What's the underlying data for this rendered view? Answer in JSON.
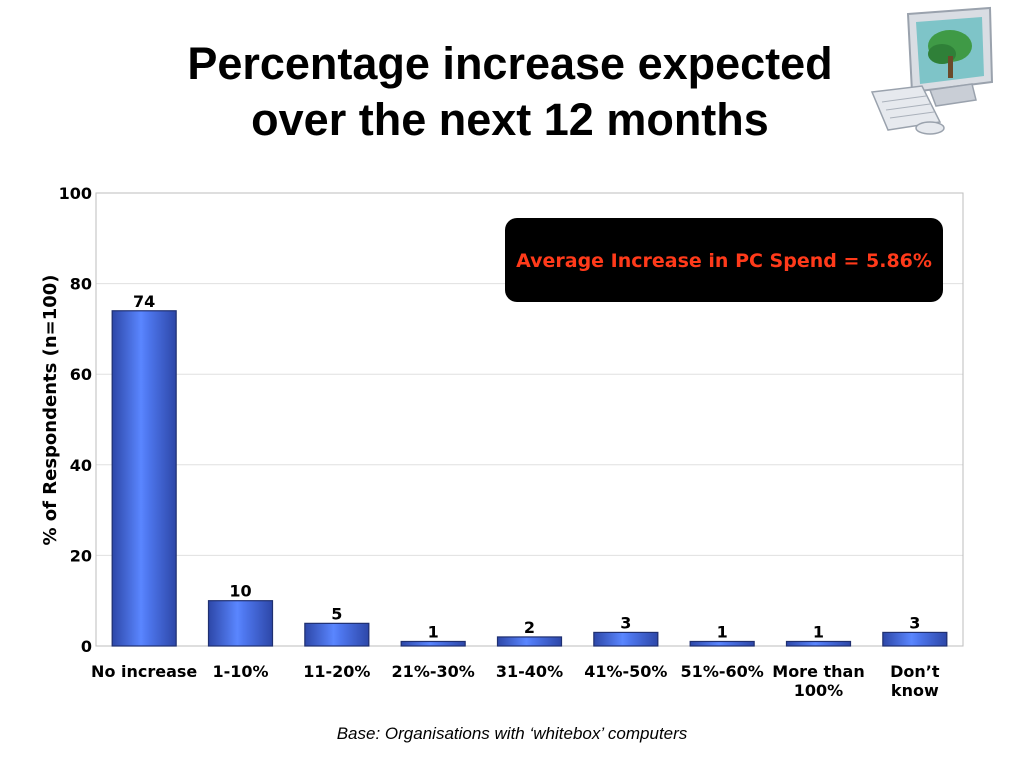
{
  "title_lines": [
    "Percentage increase expected",
    "over the next 12 months"
  ],
  "footnote": "Base:  Organisations with ‘whitebox’ computers",
  "annotation": "Average Increase in PC Spend = 5.86%",
  "icons": {
    "clipart": "computer-icon"
  },
  "colors": {
    "bar_fill": "#3f63d6",
    "bar_highlight": "#5a86ff",
    "annotation_bg": "#000000",
    "annotation_text": "#ff3a1a"
  },
  "chart_data": {
    "type": "bar",
    "categories": [
      [
        "No increase"
      ],
      [
        "1-10%"
      ],
      [
        "11-20%"
      ],
      [
        "21%-30%"
      ],
      [
        "31-40%"
      ],
      [
        "41%-50%"
      ],
      [
        "51%-60%"
      ],
      [
        "More than",
        "100%"
      ],
      [
        "Don’t",
        "know"
      ]
    ],
    "values": [
      74,
      10,
      5,
      1,
      2,
      3,
      1,
      1,
      3
    ],
    "title": "",
    "xlabel": "",
    "ylabel": "% of Respondents (n=100)",
    "ylim": [
      0,
      100
    ],
    "yticks": [
      0,
      20,
      40,
      60,
      80,
      100
    ],
    "grid": true,
    "legend": "none"
  }
}
